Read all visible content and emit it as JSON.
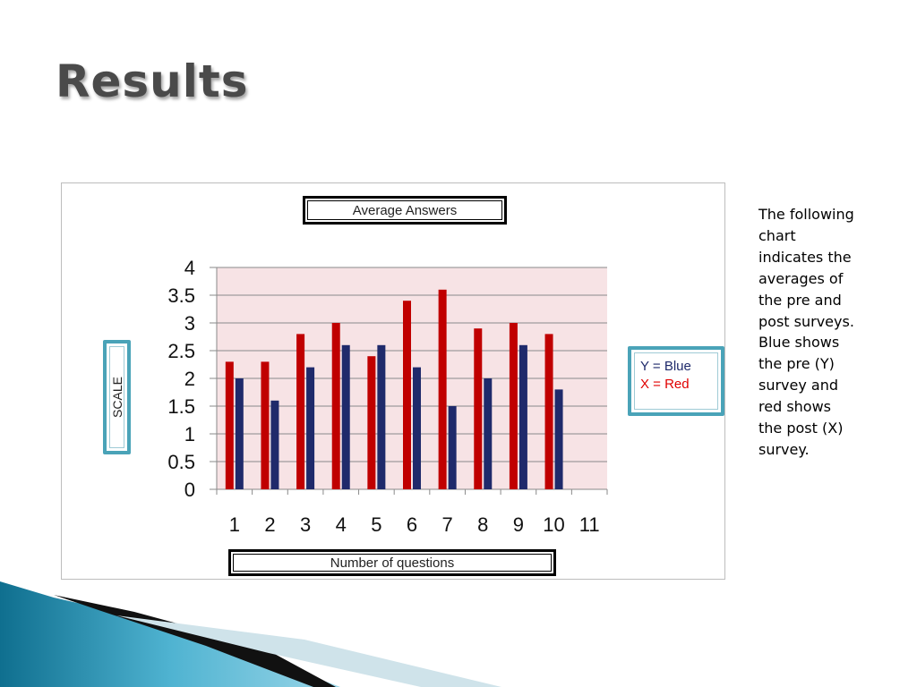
{
  "slide": {
    "title": "Results",
    "caption": "The following chart indicates the averages of the pre and post surveys. Blue shows the pre  (Y) survey and red shows the post (X) survey."
  },
  "chart_data": {
    "type": "bar",
    "title": "Average Answers",
    "xlabel": "Number of questions",
    "ylabel": "SCALE",
    "categories": [
      "1",
      "2",
      "3",
      "4",
      "5",
      "6",
      "7",
      "8",
      "9",
      "10",
      "11"
    ],
    "series": [
      {
        "name": "X = Red",
        "color": "#c00000",
        "values": [
          2.3,
          2.3,
          2.8,
          3.0,
          2.4,
          3.4,
          3.6,
          2.9,
          3.0,
          2.8,
          null
        ]
      },
      {
        "name": "Y = Blue",
        "color": "#1f2a6b",
        "values": [
          2.0,
          1.6,
          2.2,
          2.6,
          2.6,
          2.2,
          1.5,
          2.0,
          2.6,
          1.8,
          null
        ]
      }
    ],
    "ylim": [
      0,
      4
    ],
    "yticks": [
      "0",
      "0.5",
      "1",
      "1.5",
      "2",
      "2.5",
      "3",
      "3.5",
      "4"
    ],
    "grid": true,
    "plot_background": "#f7e3e5",
    "legend": {
      "placement": "right",
      "entries": [
        {
          "label": "Y = Blue",
          "color": "#1f2a6b"
        },
        {
          "label": "X = Red",
          "color": "#e00000"
        }
      ]
    }
  }
}
